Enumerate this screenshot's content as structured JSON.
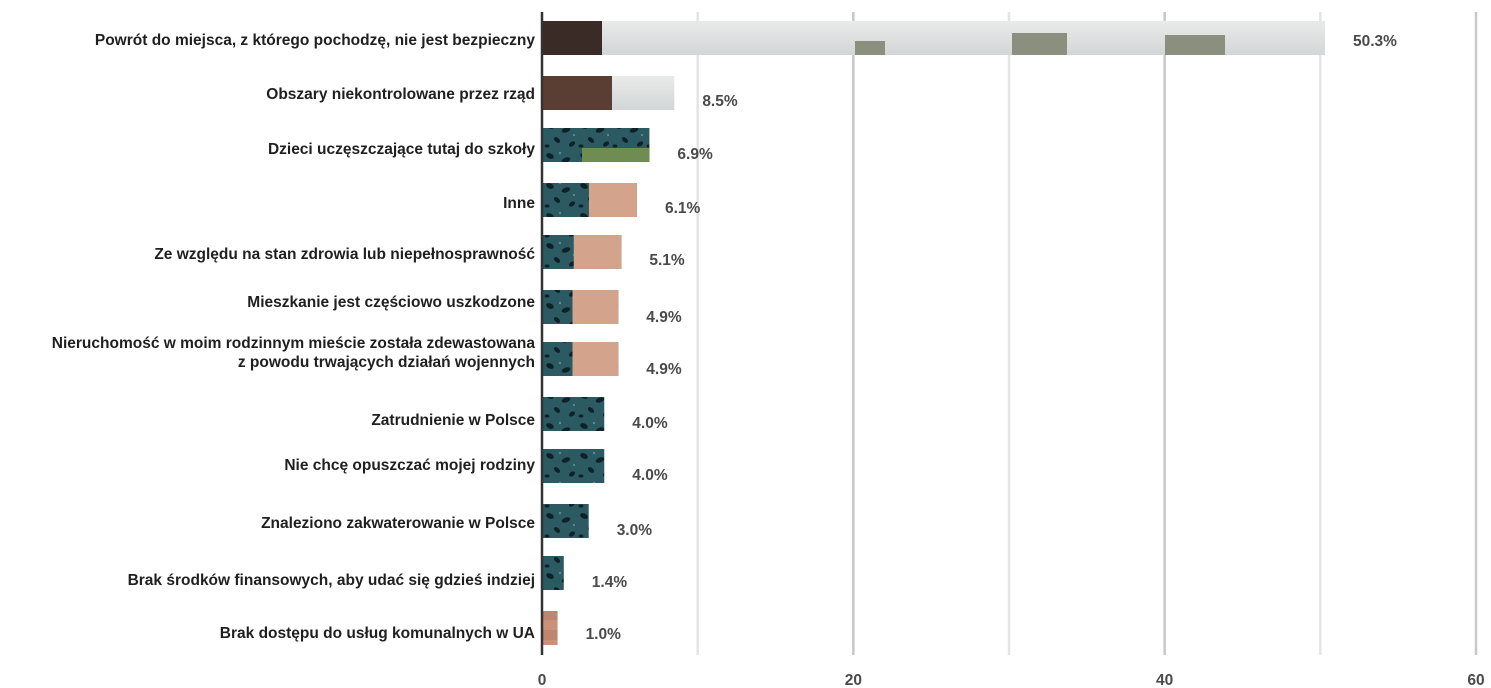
{
  "chart_data": {
    "type": "bar",
    "orientation": "horizontal",
    "categories": [
      [
        "Powrót do miejsca, z którego pochodzę, nie jest bezpieczny"
      ],
      [
        "Obszary niekontrolowane przez rząd"
      ],
      [
        "Dzieci uczęszczające tutaj do szkoły"
      ],
      [
        "Inne"
      ],
      [
        "Ze względu na stan zdrowia lub niepełnosprawność"
      ],
      [
        "Mieszkanie jest częściowo uszkodzone"
      ],
      [
        "Nieruchomość w moim rodzinnym mieście została zdewastowana",
        "z powodu trwających działań wojennych"
      ],
      [
        "Zatrudnienie w Polsce"
      ],
      [
        "Nie chcę opuszczać mojej rodziny"
      ],
      [
        "Znaleziono zakwaterowanie w Polsce"
      ],
      [
        "Brak środków finansowych, aby udać się gdzieś indziej"
      ],
      [
        "Brak dostępu do usług komunalnych w UA"
      ]
    ],
    "values": [
      50.3,
      8.5,
      6.9,
      6.1,
      5.1,
      4.9,
      4.9,
      4.0,
      4.0,
      3.0,
      1.4,
      1.0
    ],
    "value_labels": [
      "50.3%",
      "8.5%",
      "6.9%",
      "6.1%",
      "5.1%",
      "4.9%",
      "4.9%",
      "4.0%",
      "4.0%",
      "3.0%",
      "1.4%",
      "1.0%"
    ],
    "xlim": [
      0,
      60
    ],
    "xticks": [
      0,
      20,
      40,
      60
    ],
    "xtick_labels": [
      "0",
      "20",
      "40",
      "60"
    ],
    "minor_gridlines": [
      10,
      30,
      50
    ],
    "grid": true,
    "bar_fill": "photo texture (image of a person on a city street)",
    "colors": {
      "bar_teal": "#2b5a62",
      "bar_dark": "#17313a",
      "bar_sky": "#d9dcdd",
      "bar_skin": "#c9917a",
      "grid_major": "#c8c8c8",
      "grid_minor": "#e4e4e4",
      "axis": "#333333",
      "label_text": "#1f1f1f",
      "value_text": "#4a4a4a"
    }
  }
}
